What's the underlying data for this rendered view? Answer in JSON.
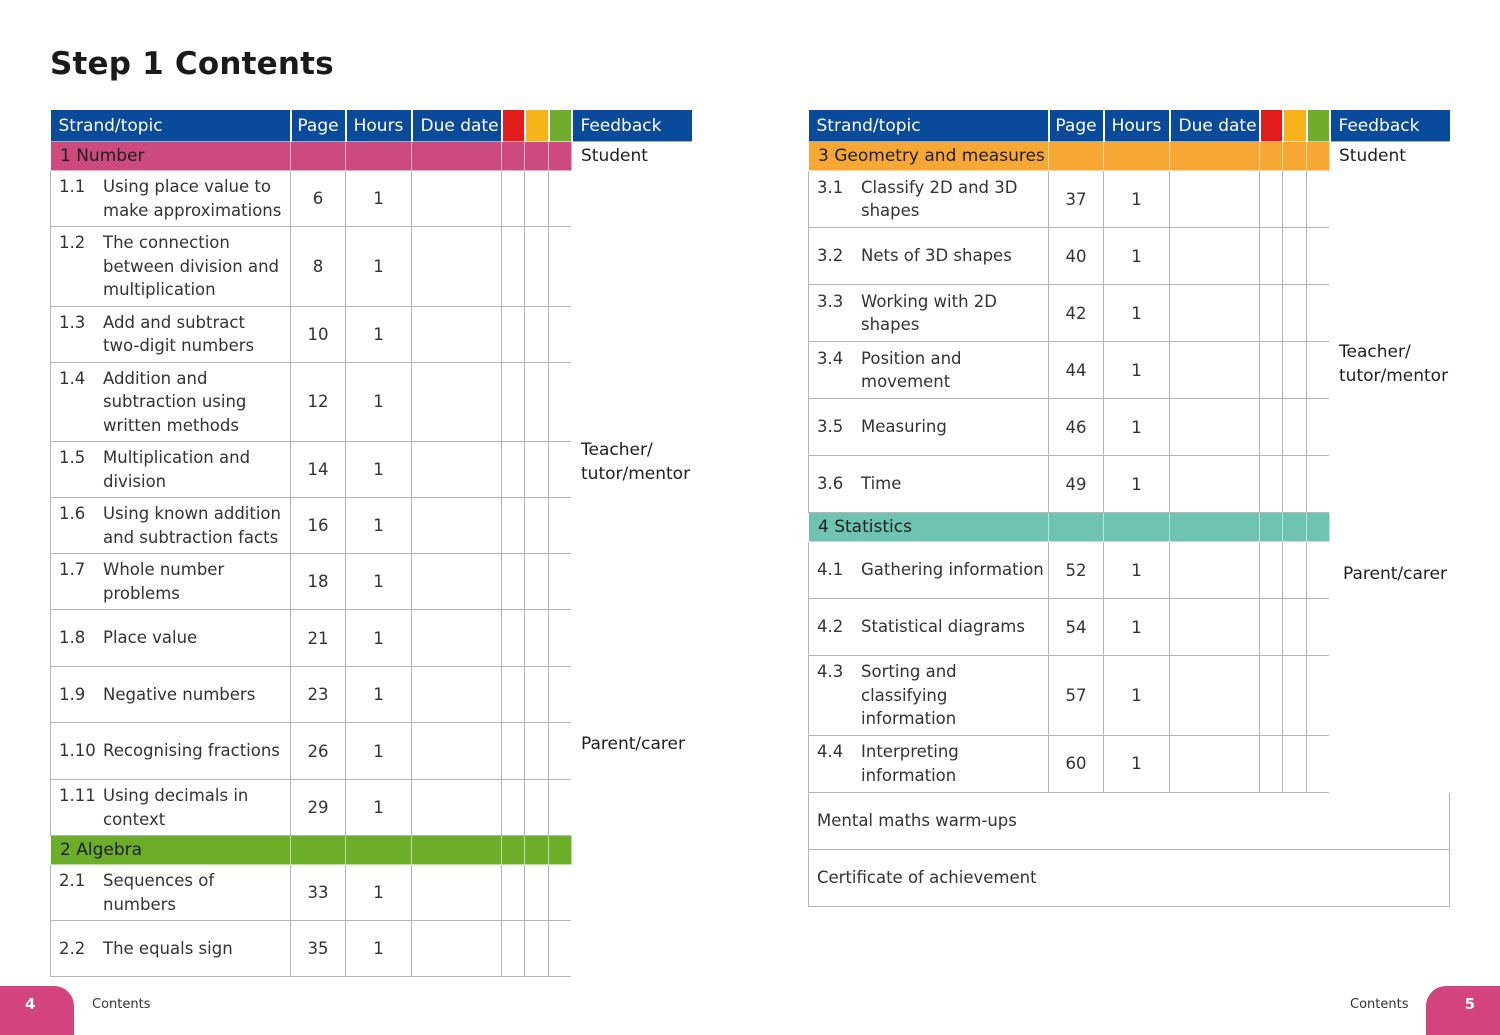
{
  "title": "Step 1 Contents",
  "colors": {
    "header": "#0a4a9b",
    "red": "#e21b1b",
    "amber": "#f6b41a",
    "green": "#71ac2d",
    "strand_number": "#cd4a7f",
    "strand_algebra": "#6cad29",
    "strand_geometry": "#f6a734",
    "strand_statistics": "#6ec4b1",
    "footer_tab": "#d3437d"
  },
  "headers": {
    "strand_topic": "Strand/topic",
    "page": "Page",
    "hours": "Hours",
    "due_date": "Due date",
    "feedback": "Feedback"
  },
  "feedback_labels": {
    "student": "Student",
    "teacher": "Teacher/ tutor/mentor",
    "parent": "Parent/carer"
  },
  "left": {
    "strand1": "1 Number",
    "topics1": [
      {
        "num": "1.1",
        "title": "Using place value to make approximations",
        "page": "6",
        "hours": "1"
      },
      {
        "num": "1.2",
        "title": "The connection between division and multiplication",
        "page": "8",
        "hours": "1"
      },
      {
        "num": "1.3",
        "title": "Add and subtract two-digit numbers",
        "page": "10",
        "hours": "1"
      },
      {
        "num": "1.4",
        "title": "Addition and subtraction using written methods",
        "page": "12",
        "hours": "1"
      },
      {
        "num": "1.5",
        "title": "Multiplication and division",
        "page": "14",
        "hours": "1"
      },
      {
        "num": "1.6",
        "title": "Using known addition and subtraction facts",
        "page": "16",
        "hours": "1"
      },
      {
        "num": "1.7",
        "title": "Whole number problems",
        "page": "18",
        "hours": "1"
      },
      {
        "num": "1.8",
        "title": "Place value",
        "page": "21",
        "hours": "1"
      },
      {
        "num": "1.9",
        "title": "Negative numbers",
        "page": "23",
        "hours": "1"
      },
      {
        "num": "1.10",
        "title": "Recognising fractions",
        "page": "26",
        "hours": "1"
      },
      {
        "num": "1.11",
        "title": "Using decimals in context",
        "page": "29",
        "hours": "1"
      }
    ],
    "strand2": "2 Algebra",
    "topics2": [
      {
        "num": "2.1",
        "title": "Sequences of numbers",
        "page": "33",
        "hours": "1"
      },
      {
        "num": "2.2",
        "title": "The equals sign",
        "page": "35",
        "hours": "1"
      }
    ]
  },
  "right": {
    "strand3": "3 Geometry and measures",
    "topics3": [
      {
        "num": "3.1",
        "title": "Classify 2D and 3D shapes",
        "page": "37",
        "hours": "1"
      },
      {
        "num": "3.2",
        "title": "Nets of 3D shapes",
        "page": "40",
        "hours": "1"
      },
      {
        "num": "3.3",
        "title": "Working with 2D shapes",
        "page": "42",
        "hours": "1"
      },
      {
        "num": "3.4",
        "title": "Position and movement",
        "page": "44",
        "hours": "1"
      },
      {
        "num": "3.5",
        "title": "Measuring",
        "page": "46",
        "hours": "1"
      },
      {
        "num": "3.6",
        "title": "Time",
        "page": "49",
        "hours": "1"
      }
    ],
    "strand4": "4 Statistics",
    "topics4": [
      {
        "num": "4.1",
        "title": "Gathering information",
        "page": "52",
        "hours": "1"
      },
      {
        "num": "4.2",
        "title": "Statistical diagrams",
        "page": "54",
        "hours": "1"
      },
      {
        "num": "4.3",
        "title": "Sorting and classifying information",
        "page": "57",
        "hours": "1"
      },
      {
        "num": "4.4",
        "title": "Interpreting information",
        "page": "60",
        "hours": "1"
      }
    ],
    "extras": [
      "Mental maths warm-ups",
      "Certificate of achievement"
    ]
  },
  "footer": {
    "left_page": "4",
    "left_label": "Contents",
    "right_label": "Contents",
    "right_page": "5"
  }
}
